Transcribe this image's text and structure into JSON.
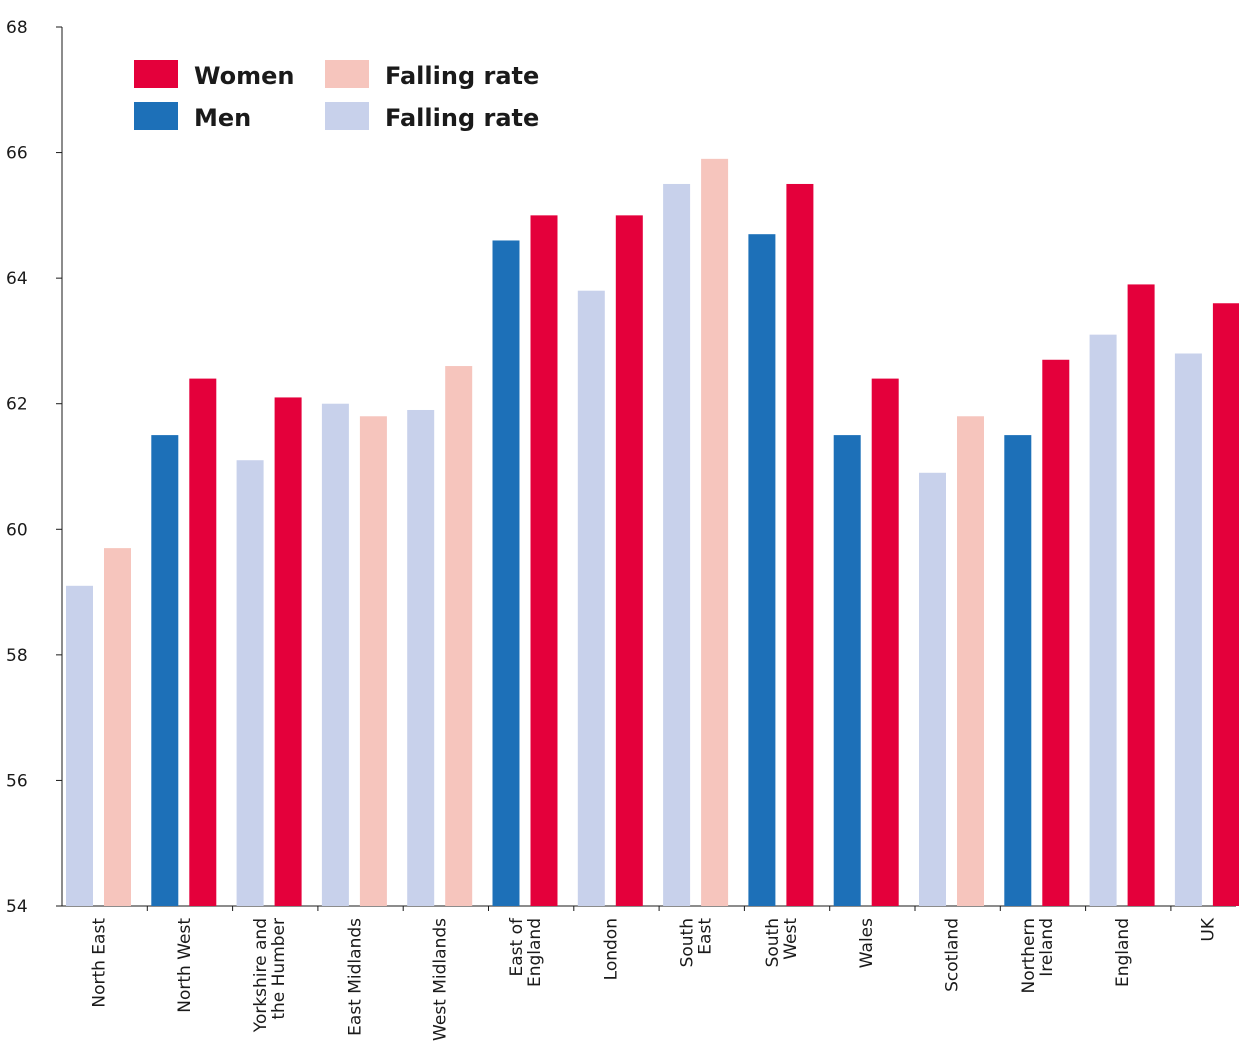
{
  "chart_data": {
    "type": "bar",
    "ylim": [
      54,
      68
    ],
    "yticks": [
      54,
      56,
      58,
      60,
      62,
      64,
      66,
      68
    ],
    "grid": false,
    "colors": {
      "women": "#e4003b",
      "women_falling": "#f6c5bd",
      "men": "#1d70b8",
      "men_falling": "#c8d1eb"
    },
    "legend": {
      "placement": "top-left",
      "entries": [
        {
          "label": "Women",
          "color_key": "women"
        },
        {
          "label": "Falling rate",
          "color_key": "women_falling"
        },
        {
          "label": "Men",
          "color_key": "men"
        },
        {
          "label": "Falling rate",
          "color_key": "men_falling"
        }
      ]
    },
    "categories": [
      {
        "label": [
          "North East"
        ],
        "men": 59.1,
        "men_falling": true,
        "women": 59.7,
        "women_falling": true
      },
      {
        "label": [
          "North West"
        ],
        "men": 61.5,
        "men_falling": false,
        "women": 62.4,
        "women_falling": false
      },
      {
        "label": [
          "Yorkshire and",
          "the Humber"
        ],
        "men": 61.1,
        "men_falling": true,
        "women": 62.1,
        "women_falling": false
      },
      {
        "label": [
          "East Midlands"
        ],
        "men": 62.0,
        "men_falling": true,
        "women": 61.8,
        "women_falling": true
      },
      {
        "label": [
          "West Midlands"
        ],
        "men": 61.9,
        "men_falling": true,
        "women": 62.6,
        "women_falling": true
      },
      {
        "label": [
          "East of",
          "England"
        ],
        "men": 64.6,
        "men_falling": false,
        "women": 65.0,
        "women_falling": false
      },
      {
        "label": [
          "London"
        ],
        "men": 63.8,
        "men_falling": true,
        "women": 65.0,
        "women_falling": false
      },
      {
        "label": [
          "South",
          "East"
        ],
        "men": 65.5,
        "men_falling": true,
        "women": 65.9,
        "women_falling": true
      },
      {
        "label": [
          "South",
          "West"
        ],
        "men": 64.7,
        "men_falling": false,
        "women": 65.5,
        "women_falling": false
      },
      {
        "label": [
          "Wales"
        ],
        "men": 61.5,
        "men_falling": false,
        "women": 62.4,
        "women_falling": false
      },
      {
        "label": [
          "Scotland"
        ],
        "men": 60.9,
        "men_falling": true,
        "women": 61.8,
        "women_falling": true
      },
      {
        "label": [
          "Northern",
          "Ireland"
        ],
        "men": 61.5,
        "men_falling": false,
        "women": 62.7,
        "women_falling": false
      },
      {
        "label": [
          "England"
        ],
        "men": 63.1,
        "men_falling": true,
        "women": 63.9,
        "women_falling": false
      },
      {
        "label": [
          "UK"
        ],
        "men": 62.8,
        "men_falling": true,
        "women": 63.6,
        "women_falling": false
      }
    ]
  }
}
